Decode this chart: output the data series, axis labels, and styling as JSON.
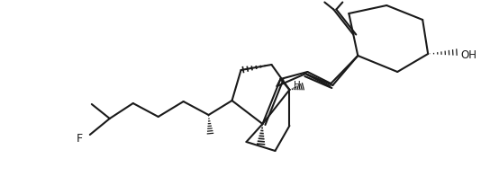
{
  "bg": "#ffffff",
  "lc": "#1a1a1a",
  "lw": 1.5,
  "figsize": [
    5.34,
    1.96
  ],
  "dpi": 100,
  "xlim": [
    0,
    534
  ],
  "ylim": [
    0,
    196
  ]
}
